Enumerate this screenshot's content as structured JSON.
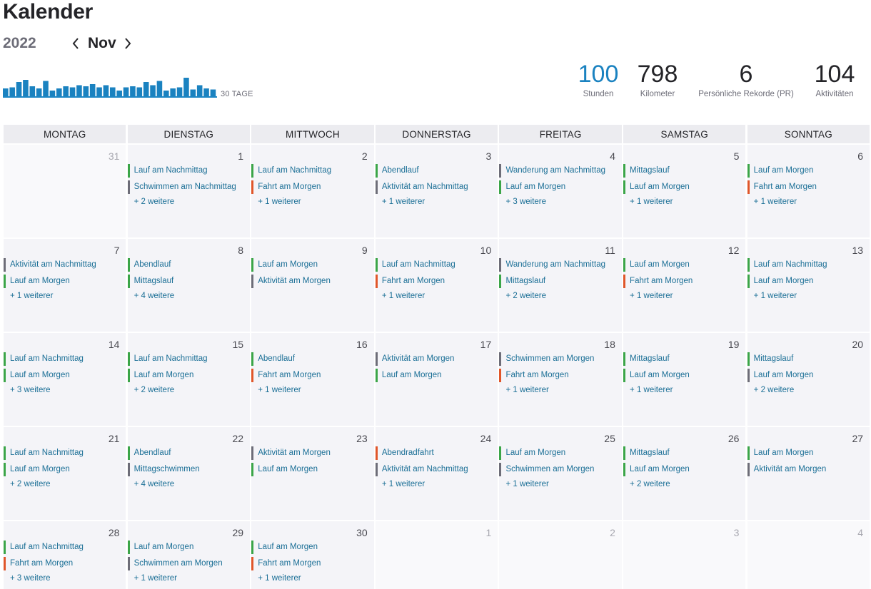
{
  "header": {
    "title": "Kalender",
    "year": "2022",
    "month": "Nov",
    "sparkline_label": "30 TAGE"
  },
  "sparkline": {
    "values": [
      0.4,
      0.45,
      0.7,
      0.8,
      0.5,
      0.4,
      0.75,
      0.3,
      0.4,
      0.5,
      0.45,
      0.55,
      0.5,
      0.6,
      0.45,
      0.55,
      0.45,
      0.3,
      0.45,
      0.5,
      0.45,
      0.7,
      0.55,
      0.75,
      0.3,
      0.4,
      0.45,
      0.9,
      0.35,
      0.55,
      0.4,
      0.35
    ]
  },
  "stats": [
    {
      "value": "100",
      "label": "Stunden"
    },
    {
      "value": "798",
      "label": "Kilometer"
    },
    {
      "value": "6",
      "label": "Persönliche Rekorde (PR)"
    },
    {
      "value": "104",
      "label": "Aktivitäten"
    }
  ],
  "colors": {
    "run": "#3ba548",
    "other": "#6d6d78",
    "ride": "#e0562a",
    "accent": "#1a82c0",
    "link": "#1b6f96"
  },
  "weekdays": [
    "MONTAG",
    "DIENSTAG",
    "MITTWOCH",
    "DONNERSTAG",
    "FREITAG",
    "SAMSTAG",
    "SONNTAG"
  ],
  "weeks": [
    [
      {
        "day": "31",
        "other": true,
        "acts": [],
        "more": ""
      },
      {
        "day": "1",
        "acts": [
          {
            "name": "Lauf am Nachmittag",
            "kind": "run"
          },
          {
            "name": "Schwimmen am Nachmittag",
            "kind": "other"
          }
        ],
        "more": "+ 2 weitere"
      },
      {
        "day": "2",
        "acts": [
          {
            "name": "Lauf am Nachmittag",
            "kind": "run"
          },
          {
            "name": "Fahrt am Morgen",
            "kind": "ride"
          }
        ],
        "more": "+ 1 weiterer"
      },
      {
        "day": "3",
        "acts": [
          {
            "name": "Abendlauf",
            "kind": "run"
          },
          {
            "name": "Aktivität am Nachmittag",
            "kind": "other"
          }
        ],
        "more": "+ 1 weiterer"
      },
      {
        "day": "4",
        "acts": [
          {
            "name": "Wanderung am Nachmittag",
            "kind": "other"
          },
          {
            "name": "Lauf am Morgen",
            "kind": "run"
          }
        ],
        "more": "+ 3 weitere"
      },
      {
        "day": "5",
        "acts": [
          {
            "name": "Mittagslauf",
            "kind": "run"
          },
          {
            "name": "Lauf am Morgen",
            "kind": "run"
          }
        ],
        "more": "+ 1 weiterer"
      },
      {
        "day": "6",
        "acts": [
          {
            "name": "Lauf am Morgen",
            "kind": "run"
          },
          {
            "name": "Fahrt am Morgen",
            "kind": "ride"
          }
        ],
        "more": "+ 1 weiterer"
      }
    ],
    [
      {
        "day": "7",
        "acts": [
          {
            "name": "Aktivität am Nachmittag",
            "kind": "other"
          },
          {
            "name": "Lauf am Morgen",
            "kind": "run"
          }
        ],
        "more": "+ 1 weiterer"
      },
      {
        "day": "8",
        "acts": [
          {
            "name": "Abendlauf",
            "kind": "run"
          },
          {
            "name": "Mittagslauf",
            "kind": "run"
          }
        ],
        "more": "+ 4 weitere"
      },
      {
        "day": "9",
        "acts": [
          {
            "name": "Lauf am Morgen",
            "kind": "run"
          },
          {
            "name": "Aktivität am Morgen",
            "kind": "other"
          }
        ],
        "more": ""
      },
      {
        "day": "10",
        "acts": [
          {
            "name": "Lauf am Nachmittag",
            "kind": "run"
          },
          {
            "name": "Fahrt am Morgen",
            "kind": "ride"
          }
        ],
        "more": "+ 1 weiterer"
      },
      {
        "day": "11",
        "acts": [
          {
            "name": "Wanderung am Nachmittag",
            "kind": "other"
          },
          {
            "name": "Mittagslauf",
            "kind": "run"
          }
        ],
        "more": "+ 2 weitere"
      },
      {
        "day": "12",
        "acts": [
          {
            "name": "Lauf am Morgen",
            "kind": "run"
          },
          {
            "name": "Fahrt am Morgen",
            "kind": "ride"
          }
        ],
        "more": "+ 1 weiterer"
      },
      {
        "day": "13",
        "acts": [
          {
            "name": "Lauf am Nachmittag",
            "kind": "run"
          },
          {
            "name": "Lauf am Morgen",
            "kind": "run"
          }
        ],
        "more": "+ 1 weiterer"
      }
    ],
    [
      {
        "day": "14",
        "acts": [
          {
            "name": "Lauf am Nachmittag",
            "kind": "run"
          },
          {
            "name": "Lauf am Morgen",
            "kind": "run"
          }
        ],
        "more": "+ 3 weitere"
      },
      {
        "day": "15",
        "acts": [
          {
            "name": "Lauf am Nachmittag",
            "kind": "run"
          },
          {
            "name": "Lauf am Morgen",
            "kind": "run"
          }
        ],
        "more": "+ 2 weitere"
      },
      {
        "day": "16",
        "acts": [
          {
            "name": "Abendlauf",
            "kind": "run"
          },
          {
            "name": "Fahrt am Morgen",
            "kind": "ride"
          }
        ],
        "more": "+ 1 weiterer"
      },
      {
        "day": "17",
        "acts": [
          {
            "name": "Aktivität am Morgen",
            "kind": "other"
          },
          {
            "name": "Lauf am Morgen",
            "kind": "run"
          }
        ],
        "more": ""
      },
      {
        "day": "18",
        "acts": [
          {
            "name": "Schwimmen am Morgen",
            "kind": "other"
          },
          {
            "name": "Fahrt am Morgen",
            "kind": "ride"
          }
        ],
        "more": "+ 1 weiterer"
      },
      {
        "day": "19",
        "acts": [
          {
            "name": "Mittagslauf",
            "kind": "run"
          },
          {
            "name": "Lauf am Morgen",
            "kind": "run"
          }
        ],
        "more": "+ 1 weiterer"
      },
      {
        "day": "20",
        "acts": [
          {
            "name": "Mittagslauf",
            "kind": "run"
          },
          {
            "name": "Lauf am Morgen",
            "kind": "other"
          }
        ],
        "more": "+ 2 weitere"
      }
    ],
    [
      {
        "day": "21",
        "acts": [
          {
            "name": "Lauf am Nachmittag",
            "kind": "run"
          },
          {
            "name": "Lauf am Morgen",
            "kind": "run"
          }
        ],
        "more": "+ 2 weitere"
      },
      {
        "day": "22",
        "acts": [
          {
            "name": "Abendlauf",
            "kind": "run"
          },
          {
            "name": "Mittagschwimmen",
            "kind": "other"
          }
        ],
        "more": "+ 4 weitere"
      },
      {
        "day": "23",
        "acts": [
          {
            "name": "Aktivität am Morgen",
            "kind": "other"
          },
          {
            "name": "Lauf am Morgen",
            "kind": "run"
          }
        ],
        "more": ""
      },
      {
        "day": "24",
        "acts": [
          {
            "name": "Abendradfahrt",
            "kind": "ride"
          },
          {
            "name": "Aktivität am Nachmittag",
            "kind": "other"
          }
        ],
        "more": "+ 1 weiterer"
      },
      {
        "day": "25",
        "acts": [
          {
            "name": "Lauf am Morgen",
            "kind": "run"
          },
          {
            "name": "Schwimmen am Morgen",
            "kind": "other"
          }
        ],
        "more": "+ 1 weiterer"
      },
      {
        "day": "26",
        "acts": [
          {
            "name": "Mittagslauf",
            "kind": "run"
          },
          {
            "name": "Lauf am Morgen",
            "kind": "run"
          }
        ],
        "more": "+ 2 weitere"
      },
      {
        "day": "27",
        "acts": [
          {
            "name": "Lauf am Morgen",
            "kind": "run"
          },
          {
            "name": "Aktivität am Morgen",
            "kind": "other"
          }
        ],
        "more": ""
      }
    ],
    [
      {
        "day": "28",
        "acts": [
          {
            "name": "Lauf am Nachmittag",
            "kind": "run"
          },
          {
            "name": "Fahrt am Morgen",
            "kind": "ride"
          }
        ],
        "more": "+ 3 weitere"
      },
      {
        "day": "29",
        "acts": [
          {
            "name": "Lauf am Morgen",
            "kind": "run"
          },
          {
            "name": "Schwimmen am Morgen",
            "kind": "other"
          }
        ],
        "more": "+ 1 weiterer"
      },
      {
        "day": "30",
        "acts": [
          {
            "name": "Lauf am Morgen",
            "kind": "run"
          },
          {
            "name": "Fahrt am Morgen",
            "kind": "ride"
          }
        ],
        "more": "+ 1 weiterer"
      },
      {
        "day": "1",
        "other": true,
        "acts": [],
        "more": ""
      },
      {
        "day": "2",
        "other": true,
        "acts": [],
        "more": ""
      },
      {
        "day": "3",
        "other": true,
        "acts": [],
        "more": ""
      },
      {
        "day": "4",
        "other": true,
        "acts": [],
        "more": ""
      }
    ]
  ]
}
